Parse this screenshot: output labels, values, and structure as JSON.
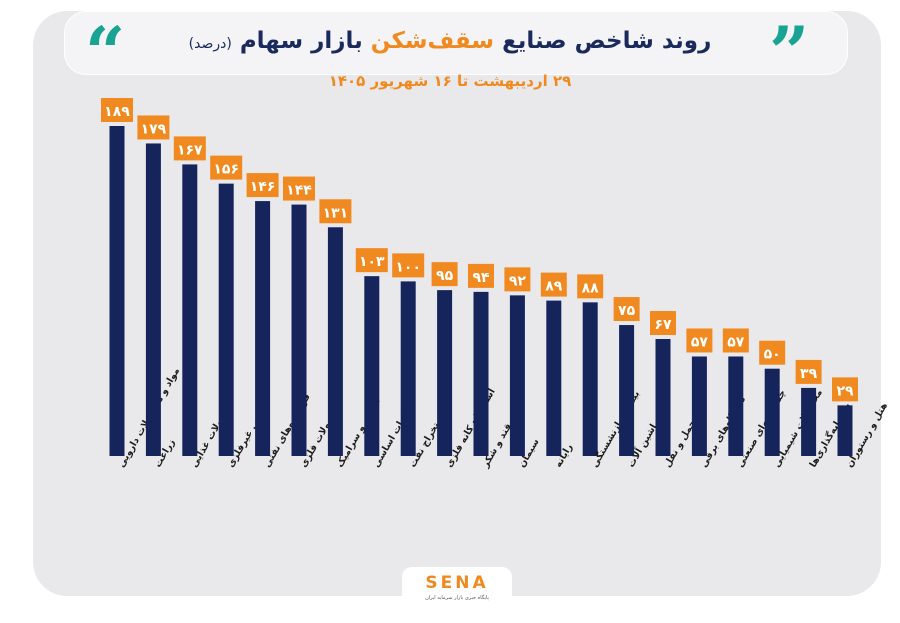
{
  "header": {
    "title_main": "روند شاخص صنایع",
    "title_highlight": "سقف‌شکن",
    "title_end": "بازار سهام",
    "title_unit": "(درصد)",
    "subtitle": "۲۹ اردیبهشت تا ۱۶ شهریور ۱۴۰۵"
  },
  "logo": {
    "name": "SENA",
    "tagline": "پایگاه خبری بازار سرمایه ایران"
  },
  "chart_data": {
    "type": "bar",
    "categories": [
      "مواد و محصولات دارویی",
      "زراعت",
      "محصولات غذایی",
      "کانی غیرفلزی",
      "فراورده‌های نفتی",
      "محصولات فلزی",
      "کاشی و سرامیک",
      "فلزات اساسی",
      "استخراج نفت",
      "استخراج کانه فلزی",
      "قند و شکر",
      "سیمان",
      "رایانه",
      "بیمه و بازنشستگی",
      "ماشین آلات",
      "حمل و نقل",
      "دستگاه‌های برقی",
      "چندرشته‌ای صنعتی",
      "محصولات شیمیایی",
      "سرمایه‌گذاری‌ها",
      "هتل و رستوران"
    ],
    "values": [
      189,
      179,
      167,
      156,
      146,
      144,
      131,
      103,
      100,
      95,
      94,
      92,
      89,
      88,
      75,
      67,
      57,
      57,
      50,
      39,
      29
    ],
    "value_labels": [
      "۱۸۹",
      "۱۷۹",
      "۱۶۷",
      "۱۵۶",
      "۱۴۶",
      "۱۴۴",
      "۱۳۱",
      "۱۰۳",
      "۱۰۰",
      "۹۵",
      "۹۴",
      "۹۲",
      "۸۹",
      "۸۸",
      "۷۵",
      "۶۷",
      "۵۷",
      "۵۷",
      "۵۰",
      "۳۹",
      "۲۹"
    ],
    "ylim": [
      0,
      189
    ],
    "grid": false,
    "legend": "none",
    "colors": {
      "bar": "#16245c",
      "label_bg": "#f08a20",
      "label_text": "#ffffff",
      "accent": "#19a392"
    }
  }
}
